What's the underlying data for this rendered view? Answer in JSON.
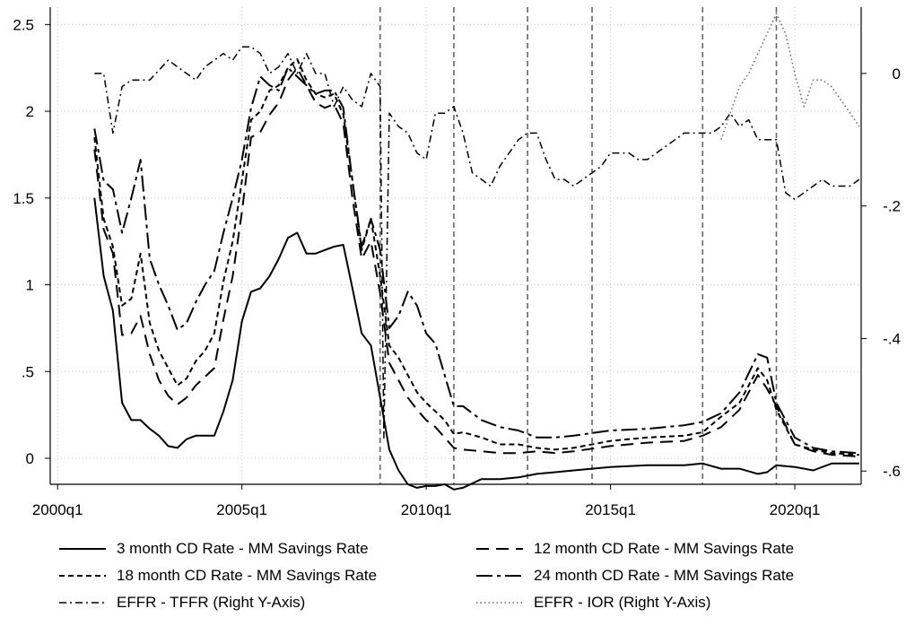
{
  "chart_data": {
    "type": "line",
    "title": "",
    "xlabel": "",
    "ylabel": "",
    "x_ticks": [
      "2000q1",
      "2005q1",
      "2010q1",
      "2015q1",
      "2020q1"
    ],
    "x_tick_values": [
      2000.0,
      2005.0,
      2010.0,
      2015.0,
      2020.0
    ],
    "xlim": [
      1999.8,
      2021.8
    ],
    "y_left_ticks": [
      "0",
      ".5",
      "1",
      "1.5",
      "2",
      "2.5"
    ],
    "y_left_tick_values": [
      0,
      0.5,
      1,
      1.5,
      2,
      2.5
    ],
    "y_left_lim": [
      -0.15,
      2.6
    ],
    "y_right_ticks": [
      "0",
      "-.2",
      "-.4",
      "-.6"
    ],
    "y_right_tick_values": [
      0,
      -0.2,
      -0.4,
      -0.6
    ],
    "y_right_lim": [
      -0.62,
      0.1
    ],
    "vertical_lines": [
      2008.75,
      2010.75,
      2012.75,
      2014.5,
      2017.5,
      2019.5
    ],
    "grid": true,
    "legend_position": "bottom",
    "series": [
      {
        "name": "3 month CD Rate - MM Savings Rate",
        "axis": "left",
        "style": "solid",
        "x": [
          2001.0,
          2001.25,
          2001.5,
          2001.75,
          2002.0,
          2002.25,
          2002.5,
          2002.75,
          2003.0,
          2003.25,
          2003.5,
          2003.75,
          2004.0,
          2004.25,
          2004.5,
          2004.75,
          2005.0,
          2005.25,
          2005.5,
          2005.75,
          2006.0,
          2006.25,
          2006.5,
          2006.75,
          2007.0,
          2007.25,
          2007.5,
          2007.75,
          2008.0,
          2008.25,
          2008.5,
          2008.75,
          2009.0,
          2009.25,
          2009.5,
          2009.75,
          2010.0,
          2010.25,
          2010.5,
          2010.75,
          2011.0,
          2011.5,
          2012.0,
          2012.5,
          2013.0,
          2013.5,
          2014.0,
          2015.0,
          2016.0,
          2017.0,
          2017.5,
          2018.0,
          2018.5,
          2019.0,
          2019.25,
          2019.5,
          2020.0,
          2020.5,
          2021.0,
          2021.75
        ],
        "values": [
          1.5,
          1.05,
          0.85,
          0.32,
          0.22,
          0.22,
          0.17,
          0.13,
          0.07,
          0.06,
          0.11,
          0.13,
          0.13,
          0.13,
          0.27,
          0.45,
          0.79,
          0.96,
          0.98,
          1.05,
          1.15,
          1.27,
          1.3,
          1.18,
          1.18,
          1.2,
          1.22,
          1.23,
          0.98,
          0.72,
          0.65,
          0.35,
          0.05,
          -0.07,
          -0.15,
          -0.17,
          -0.16,
          -0.16,
          -0.15,
          -0.18,
          -0.17,
          -0.12,
          -0.12,
          -0.11,
          -0.09,
          -0.08,
          -0.07,
          -0.05,
          -0.04,
          -0.04,
          -0.03,
          -0.06,
          -0.06,
          -0.09,
          -0.08,
          -0.04,
          -0.05,
          -0.07,
          -0.03,
          -0.03
        ]
      },
      {
        "name": "12 month CD Rate - MM Savings Rate",
        "axis": "left",
        "style": "dashed",
        "x": [
          2001.0,
          2001.25,
          2001.5,
          2001.75,
          2002.0,
          2002.25,
          2002.5,
          2002.75,
          2003.0,
          2003.25,
          2003.5,
          2003.75,
          2004.0,
          2004.25,
          2004.5,
          2004.75,
          2005.0,
          2005.25,
          2005.5,
          2005.75,
          2006.0,
          2006.25,
          2006.5,
          2006.75,
          2007.0,
          2007.25,
          2007.5,
          2007.75,
          2008.0,
          2008.25,
          2008.5,
          2008.75,
          2009.0,
          2009.25,
          2009.5,
          2009.75,
          2010.0,
          2010.25,
          2010.5,
          2010.75,
          2011.0,
          2011.5,
          2012.0,
          2012.5,
          2013.0,
          2013.5,
          2014.0,
          2015.0,
          2016.0,
          2017.0,
          2017.5,
          2018.0,
          2018.5,
          2019.0,
          2019.25,
          2019.5,
          2020.0,
          2020.5,
          2021.0,
          2021.75
        ],
        "values": [
          1.78,
          1.32,
          1.18,
          0.71,
          0.72,
          0.82,
          0.6,
          0.45,
          0.36,
          0.31,
          0.35,
          0.42,
          0.47,
          0.52,
          0.8,
          1.05,
          1.42,
          1.85,
          1.88,
          1.98,
          2.05,
          2.18,
          2.25,
          2.15,
          2.05,
          2.02,
          2.04,
          1.93,
          1.5,
          1.15,
          1.25,
          0.95,
          0.55,
          0.45,
          0.35,
          0.28,
          0.22,
          0.18,
          0.12,
          0.06,
          0.05,
          0.04,
          0.03,
          0.03,
          0.04,
          0.03,
          0.04,
          0.07,
          0.09,
          0.1,
          0.13,
          0.18,
          0.28,
          0.48,
          0.4,
          0.3,
          0.08,
          0.04,
          0.02,
          0.01
        ]
      },
      {
        "name": "18 month CD Rate - MM Savings Rate",
        "axis": "left",
        "style": "short-dash",
        "x": [
          2001.0,
          2001.25,
          2001.5,
          2001.75,
          2002.0,
          2002.25,
          2002.5,
          2002.75,
          2003.0,
          2003.25,
          2003.5,
          2003.75,
          2004.0,
          2004.25,
          2004.5,
          2004.75,
          2005.0,
          2005.25,
          2005.5,
          2005.75,
          2006.0,
          2006.25,
          2006.5,
          2006.75,
          2007.0,
          2007.25,
          2007.5,
          2007.75,
          2008.0,
          2008.25,
          2008.5,
          2008.75,
          2009.0,
          2009.25,
          2009.5,
          2009.75,
          2010.0,
          2010.25,
          2010.5,
          2010.75,
          2011.0,
          2011.5,
          2012.0,
          2012.5,
          2013.0,
          2013.5,
          2014.0,
          2015.0,
          2016.0,
          2017.0,
          2017.5,
          2018.0,
          2018.5,
          2019.0,
          2019.25,
          2019.5,
          2020.0,
          2020.5,
          2021.0,
          2021.75
        ],
        "values": [
          1.85,
          1.38,
          1.22,
          0.88,
          0.92,
          1.18,
          0.78,
          0.62,
          0.52,
          0.42,
          0.46,
          0.56,
          0.62,
          0.72,
          1.02,
          1.25,
          1.6,
          1.95,
          2.0,
          2.12,
          2.15,
          2.25,
          2.3,
          2.18,
          2.1,
          2.08,
          2.1,
          1.98,
          1.6,
          1.2,
          1.38,
          1.05,
          0.65,
          0.58,
          0.48,
          0.38,
          0.32,
          0.27,
          0.22,
          0.14,
          0.15,
          0.12,
          0.08,
          0.08,
          0.06,
          0.05,
          0.06,
          0.1,
          0.12,
          0.13,
          0.15,
          0.24,
          0.32,
          0.52,
          0.45,
          0.28,
          0.08,
          0.05,
          0.03,
          0.02
        ]
      },
      {
        "name": "24 month CD Rate - MM Savings Rate",
        "axis": "left",
        "style": "long-dash",
        "x": [
          2001.0,
          2001.25,
          2001.5,
          2001.75,
          2002.0,
          2002.25,
          2002.5,
          2002.75,
          2003.0,
          2003.25,
          2003.5,
          2003.75,
          2004.0,
          2004.25,
          2004.5,
          2004.75,
          2005.0,
          2005.25,
          2005.5,
          2005.75,
          2006.0,
          2006.25,
          2006.5,
          2006.75,
          2007.0,
          2007.25,
          2007.5,
          2007.75,
          2008.0,
          2008.25,
          2008.5,
          2008.75,
          2009.0,
          2009.25,
          2009.5,
          2009.75,
          2010.0,
          2010.25,
          2010.5,
          2010.75,
          2011.0,
          2011.5,
          2012.0,
          2012.5,
          2013.0,
          2013.5,
          2014.0,
          2015.0,
          2016.0,
          2017.0,
          2017.5,
          2018.0,
          2018.5,
          2019.0,
          2019.25,
          2019.5,
          2020.0,
          2020.5,
          2021.0,
          2021.75
        ],
        "values": [
          1.9,
          1.6,
          1.55,
          1.3,
          1.5,
          1.72,
          1.15,
          1.0,
          0.88,
          0.74,
          0.78,
          0.9,
          1.0,
          1.08,
          1.3,
          1.5,
          1.72,
          2.02,
          2.2,
          2.15,
          2.12,
          2.25,
          2.2,
          2.15,
          2.1,
          2.12,
          2.12,
          2.02,
          1.6,
          1.22,
          1.38,
          1.2,
          0.75,
          0.82,
          0.96,
          0.88,
          0.72,
          0.66,
          0.48,
          0.3,
          0.3,
          0.22,
          0.18,
          0.16,
          0.12,
          0.12,
          0.13,
          0.16,
          0.17,
          0.19,
          0.21,
          0.26,
          0.38,
          0.6,
          0.58,
          0.32,
          0.12,
          0.06,
          0.04,
          0.03
        ]
      },
      {
        "name": "EFFR - TFFR (Right Y-Axis)",
        "axis": "right",
        "style": "dash-dot",
        "x": [
          2001.0,
          2001.25,
          2001.5,
          2001.75,
          2002.0,
          2002.5,
          2003.0,
          2003.25,
          2003.5,
          2003.75,
          2004.0,
          2004.5,
          2004.75,
          2005.0,
          2005.25,
          2005.5,
          2005.75,
          2006.0,
          2006.25,
          2006.5,
          2006.75,
          2007.0,
          2007.25,
          2007.5,
          2007.75,
          2008.0,
          2008.25,
          2008.5,
          2008.75,
          2008.85,
          2009.0,
          2009.25,
          2009.5,
          2009.75,
          2010.0,
          2010.25,
          2010.5,
          2010.75,
          2011.0,
          2011.25,
          2011.5,
          2011.75,
          2012.0,
          2012.5,
          2012.75,
          2013.0,
          2013.25,
          2013.5,
          2013.75,
          2014.0,
          2014.25,
          2014.5,
          2014.75,
          2015.0,
          2015.5,
          2015.75,
          2016.0,
          2016.5,
          2016.75,
          2017.0,
          2017.5,
          2017.75,
          2018.0,
          2018.25,
          2018.5,
          2018.75,
          2019.0,
          2019.25,
          2019.5,
          2019.75,
          2020.0,
          2020.25,
          2020.5,
          2020.75,
          2021.0,
          2021.5,
          2021.75
        ],
        "values": [
          0.0,
          0.0,
          -0.09,
          -0.02,
          -0.01,
          -0.01,
          0.02,
          0.01,
          0.0,
          -0.01,
          0.01,
          0.03,
          0.02,
          0.04,
          0.04,
          0.03,
          0.0,
          0.01,
          0.03,
          0.0,
          0.03,
          0.0,
          0.0,
          -0.05,
          -0.02,
          -0.04,
          -0.05,
          0.0,
          -0.02,
          -0.55,
          -0.06,
          -0.08,
          -0.09,
          -0.12,
          -0.13,
          -0.06,
          -0.06,
          -0.05,
          -0.09,
          -0.15,
          -0.16,
          -0.17,
          -0.14,
          -0.1,
          -0.09,
          -0.09,
          -0.13,
          -0.16,
          -0.16,
          -0.17,
          -0.16,
          -0.15,
          -0.14,
          -0.12,
          -0.12,
          -0.13,
          -0.13,
          -0.11,
          -0.1,
          -0.09,
          -0.09,
          -0.09,
          -0.08,
          -0.06,
          -0.08,
          -0.07,
          -0.1,
          -0.1,
          -0.1,
          -0.18,
          -0.19,
          -0.18,
          -0.17,
          -0.16,
          -0.17,
          -0.17,
          -0.16
        ]
      },
      {
        "name": "EFFR - IOR  (Right Y-Axis)",
        "axis": "right",
        "style": "dotted",
        "x": [
          2018.0,
          2018.25,
          2018.5,
          2018.75,
          2019.0,
          2019.25,
          2019.5,
          2019.75,
          2020.0,
          2020.25,
          2020.5,
          2020.75,
          2021.0,
          2021.25,
          2021.5,
          2021.75
        ],
        "values": [
          -0.1,
          -0.06,
          -0.02,
          0.0,
          0.03,
          0.06,
          0.09,
          0.06,
          0.0,
          -0.05,
          -0.01,
          -0.01,
          -0.02,
          -0.04,
          -0.06,
          -0.08
        ]
      }
    ]
  }
}
